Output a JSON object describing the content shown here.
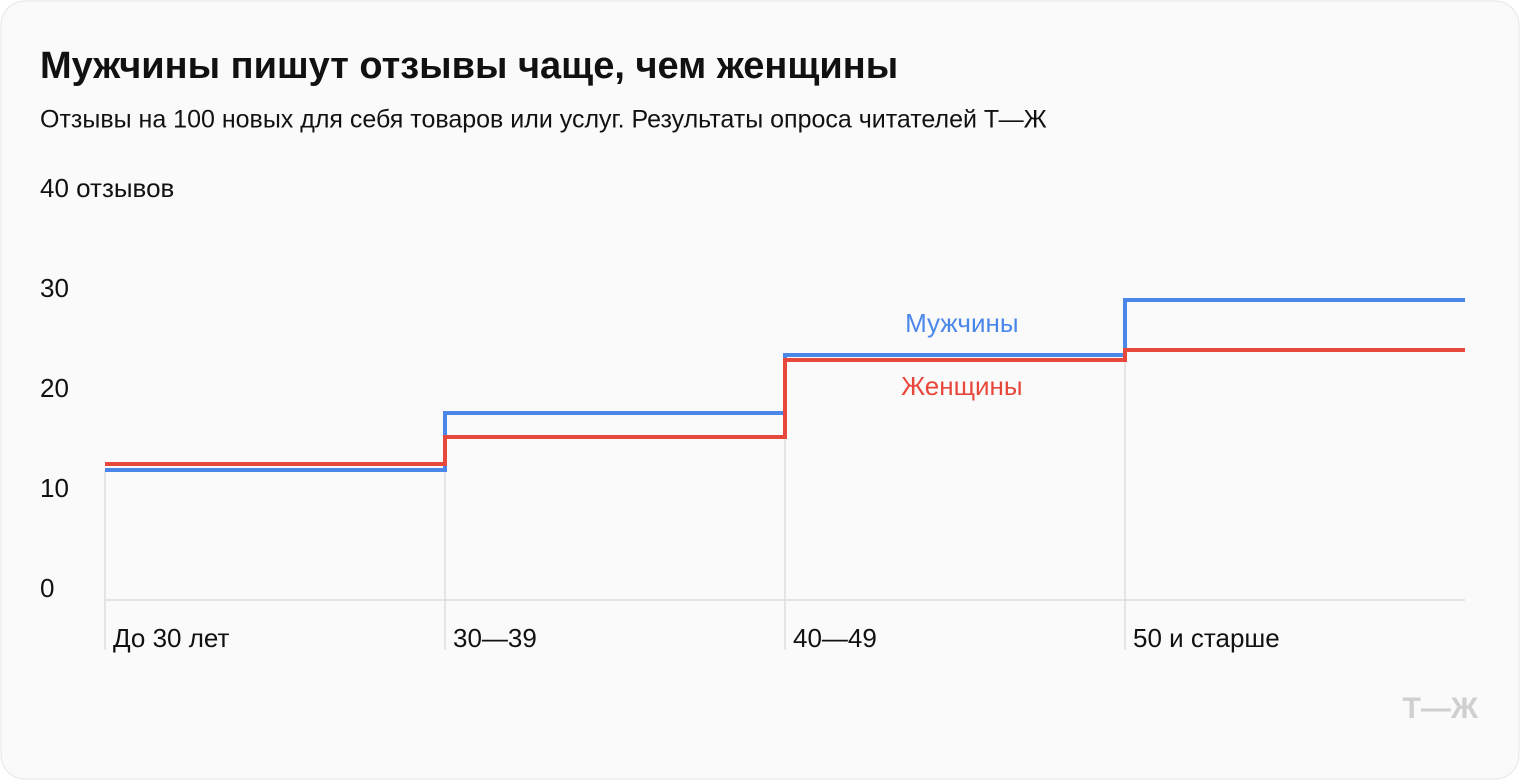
{
  "chart_data": {
    "type": "step",
    "title": "Мужчины пишут отзывы чаще, чем женщины",
    "subtitle": "Отзывы на 100 новых для себя товаров или услуг. Результаты опроса читателей Т—Ж",
    "categories": [
      "До 30 лет",
      "30—39",
      "40—49",
      "50 и старше"
    ],
    "series": [
      {
        "name": "Мужчины",
        "color": "#4a87e8",
        "values": [
          13,
          18.7,
          24.5,
          30
        ]
      },
      {
        "name": "Женщины",
        "color": "#e8473c",
        "values": [
          13.6,
          16.3,
          24,
          25
        ]
      }
    ],
    "ylim": [
      0,
      40
    ],
    "yticks": [
      0,
      10,
      20,
      30,
      {
        "value": 40,
        "label": "40 отзывов"
      }
    ],
    "grid": false,
    "logo": "Т—Ж"
  }
}
